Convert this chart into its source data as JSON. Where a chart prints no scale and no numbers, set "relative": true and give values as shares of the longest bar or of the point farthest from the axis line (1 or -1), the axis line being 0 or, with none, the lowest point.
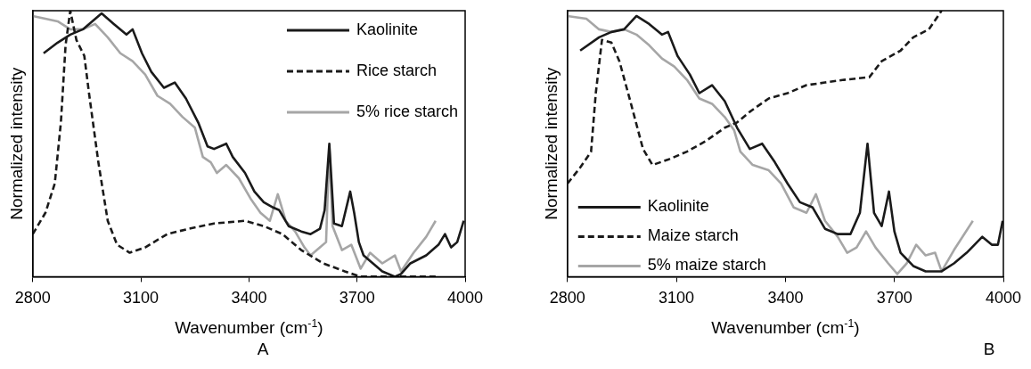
{
  "chart_data": [
    {
      "type": "line",
      "relative": true,
      "xlabel": "Wavenumber (cm$^{-1}$)",
      "ylabel": "Normalized intensity",
      "xlim": [
        2800,
        4000
      ],
      "xticks": [
        2800,
        3100,
        3400,
        3700,
        4000
      ],
      "legend": "top right",
      "marker": "none",
      "grid": false,
      "tick_labels": "x",
      "annotations": [
        "A"
      ],
      "series": [
        {
          "name": "Kaolinite",
          "color": "#1a1a1a",
          "line_style": "solid",
          "x": [
            2830,
            2869,
            2904,
            2939,
            2991,
            3025,
            3060,
            3077,
            3103,
            3129,
            3164,
            3194,
            3225,
            3259,
            3285,
            3303,
            3337,
            3355,
            3389,
            3415,
            3441,
            3467,
            3484,
            3510,
            3545,
            3571,
            3597,
            3610,
            3623,
            3636,
            3658,
            3681,
            3692,
            3705,
            3718,
            3744,
            3770,
            3805,
            3822,
            3848,
            3892,
            3926,
            3944,
            3961,
            3978,
            3996
          ],
          "values": [
            0.84,
            0.88,
            0.91,
            0.93,
            0.99,
            0.95,
            0.91,
            0.93,
            0.84,
            0.77,
            0.71,
            0.73,
            0.67,
            0.58,
            0.49,
            0.48,
            0.5,
            0.45,
            0.39,
            0.32,
            0.28,
            0.26,
            0.25,
            0.19,
            0.17,
            0.16,
            0.18,
            0.25,
            0.5,
            0.2,
            0.19,
            0.32,
            0.24,
            0.13,
            0.08,
            0.05,
            0.02,
            0.0,
            0.01,
            0.05,
            0.08,
            0.12,
            0.16,
            0.11,
            0.13,
            0.21
          ]
        },
        {
          "name": "Rice starch",
          "color": "#1a1a1a",
          "line_style": "dashed",
          "x": [
            2800,
            2835,
            2861,
            2878,
            2891,
            2904,
            2921,
            2943,
            2956,
            2982,
            3008,
            3034,
            3069,
            3112,
            3173,
            3233,
            3303,
            3389,
            3441,
            3493,
            3545,
            3606,
            3666,
            3710,
            3822,
            3918
          ],
          "values": [
            0.16,
            0.24,
            0.35,
            0.58,
            0.87,
            1.0,
            0.89,
            0.83,
            0.69,
            0.43,
            0.21,
            0.12,
            0.09,
            0.11,
            0.16,
            0.18,
            0.2,
            0.21,
            0.19,
            0.16,
            0.1,
            0.05,
            0.02,
            0.0,
            0.0,
            0.0
          ]
        },
        {
          "name": "5% rice starch",
          "color": "#a6a6a6",
          "line_style": "solid",
          "x": [
            2800,
            2835,
            2869,
            2904,
            2939,
            2973,
            3008,
            3043,
            3077,
            3112,
            3146,
            3181,
            3216,
            3250,
            3272,
            3294,
            3311,
            3337,
            3372,
            3406,
            3432,
            3458,
            3480,
            3502,
            3528,
            3554,
            3571,
            3597,
            3614,
            3623,
            3632,
            3658,
            3684,
            3710,
            3736,
            3770,
            3805,
            3822,
            3857,
            3892,
            3918
          ],
          "values": [
            0.98,
            0.97,
            0.96,
            0.93,
            0.93,
            0.95,
            0.9,
            0.84,
            0.81,
            0.76,
            0.68,
            0.65,
            0.6,
            0.56,
            0.45,
            0.43,
            0.39,
            0.42,
            0.37,
            0.29,
            0.24,
            0.21,
            0.31,
            0.21,
            0.17,
            0.11,
            0.08,
            0.11,
            0.13,
            0.49,
            0.19,
            0.1,
            0.12,
            0.03,
            0.09,
            0.05,
            0.08,
            0.02,
            0.09,
            0.15,
            0.21
          ]
        }
      ]
    },
    {
      "type": "line",
      "relative": true,
      "xlabel": "Wavenumber (cm$^{-1}$)",
      "ylabel": "Normalized intensity",
      "xlim": [
        2800,
        4000
      ],
      "xticks": [
        2800,
        3100,
        3400,
        3700,
        4000
      ],
      "legend": "bottom left",
      "marker": "none",
      "grid": false,
      "tick_labels": "x",
      "annotations": [
        "B"
      ],
      "series": [
        {
          "name": "Kaolinite",
          "color": "#1a1a1a",
          "line_style": "solid",
          "x": [
            2835,
            2887,
            2921,
            2956,
            2990,
            3025,
            3060,
            3077,
            3103,
            3137,
            3163,
            3198,
            3233,
            3267,
            3302,
            3336,
            3371,
            3406,
            3440,
            3475,
            3509,
            3544,
            3579,
            3605,
            3626,
            3644,
            3665,
            3685,
            3700,
            3717,
            3752,
            3786,
            3830,
            3864,
            3899,
            3942,
            3968,
            3985,
            3998
          ],
          "values": [
            0.85,
            0.9,
            0.92,
            0.93,
            0.98,
            0.95,
            0.91,
            0.92,
            0.83,
            0.76,
            0.69,
            0.72,
            0.66,
            0.56,
            0.48,
            0.5,
            0.43,
            0.35,
            0.28,
            0.26,
            0.18,
            0.16,
            0.16,
            0.24,
            0.5,
            0.24,
            0.19,
            0.32,
            0.17,
            0.09,
            0.04,
            0.02,
            0.02,
            0.05,
            0.09,
            0.15,
            0.12,
            0.12,
            0.21
          ]
        },
        {
          "name": "Maize starch",
          "color": "#1a1a1a",
          "line_style": "dashed",
          "x": [
            2800,
            2835,
            2865,
            2878,
            2895,
            2921,
            2943,
            2973,
            3008,
            3034,
            3077,
            3129,
            3181,
            3233,
            3267,
            3302,
            3354,
            3406,
            3458,
            3509,
            3561,
            3631,
            3665,
            3717,
            3752,
            3795,
            3830
          ],
          "values": [
            0.35,
            0.41,
            0.47,
            0.69,
            0.89,
            0.88,
            0.81,
            0.66,
            0.48,
            0.42,
            0.44,
            0.47,
            0.51,
            0.56,
            0.58,
            0.62,
            0.67,
            0.69,
            0.72,
            0.73,
            0.74,
            0.75,
            0.81,
            0.85,
            0.9,
            0.93,
            1.0
          ]
        },
        {
          "name": "5% maize starch",
          "color": "#a6a6a6",
          "line_style": "solid",
          "x": [
            2800,
            2852,
            2887,
            2921,
            2956,
            2990,
            3025,
            3060,
            3094,
            3129,
            3163,
            3198,
            3233,
            3259,
            3276,
            3310,
            3354,
            3388,
            3423,
            3458,
            3484,
            3509,
            3544,
            3570,
            3596,
            3622,
            3648,
            3683,
            3708,
            3734,
            3760,
            3786,
            3812,
            3830,
            3864,
            3916
          ],
          "values": [
            0.98,
            0.97,
            0.93,
            0.92,
            0.93,
            0.91,
            0.87,
            0.82,
            0.79,
            0.74,
            0.67,
            0.65,
            0.6,
            0.55,
            0.47,
            0.42,
            0.4,
            0.35,
            0.26,
            0.24,
            0.31,
            0.21,
            0.15,
            0.09,
            0.11,
            0.17,
            0.11,
            0.05,
            0.01,
            0.05,
            0.12,
            0.08,
            0.09,
            0.02,
            0.1,
            0.21
          ]
        }
      ]
    }
  ]
}
